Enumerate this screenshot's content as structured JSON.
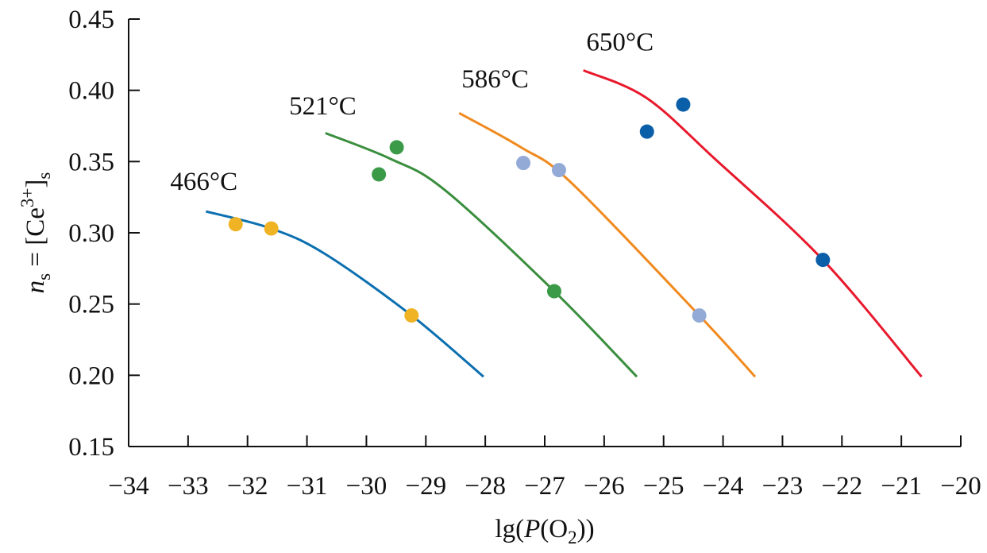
{
  "chart_data": {
    "type": "scatter",
    "title": "",
    "xlabel": "lg(P(O2))",
    "xlabel_parts": {
      "pre": "lg(",
      "italic": "P",
      "mid": "(O",
      "sub": "2",
      "post": "))"
    },
    "ylabel": "n_s = [Ce3+]_s",
    "ylabel_parts": {
      "italic": "n",
      "sub1": "s",
      "mid": " = [Ce",
      "sup": "3+",
      "close": "]",
      "sub2": "s"
    },
    "xlim": [
      -34,
      -20
    ],
    "ylim": [
      0.15,
      0.45
    ],
    "xticks": [
      -34,
      -33,
      -32,
      -31,
      -30,
      -29,
      -28,
      -27,
      -26,
      -25,
      -24,
      -23,
      -22,
      -21,
      -20
    ],
    "xtick_labels": [
      "−34",
      "−33",
      "−32",
      "−31",
      "−30",
      "−29",
      "−28",
      "−27",
      "−26",
      "−25",
      "−24",
      "−23",
      "−22",
      "−21",
      "−20"
    ],
    "yticks": [
      0.15,
      0.2,
      0.25,
      0.3,
      0.35,
      0.4,
      0.45
    ],
    "ytick_labels": [
      "0.15",
      "0.20",
      "0.25",
      "0.30",
      "0.35",
      "0.40",
      "0.45"
    ],
    "grid": false,
    "series": [
      {
        "name": "466°C",
        "line_color": "#0b6fb0",
        "marker_color": "#f0b323",
        "points": [
          [
            -32.2,
            0.306
          ],
          [
            -31.6,
            0.303
          ],
          [
            -29.24,
            0.242
          ]
        ],
        "curve": [
          [
            -32.7,
            0.315
          ],
          [
            -31.6,
            0.303
          ],
          [
            -30.69,
            0.285
          ],
          [
            -29.24,
            0.242
          ],
          [
            -28.03,
            0.199
          ]
        ],
        "label_pos": [
          -33.3,
          0.33
        ]
      },
      {
        "name": "521°C",
        "line_color": "#3a8e3e",
        "marker_color": "#3a9a48",
        "points": [
          [
            -29.79,
            0.341
          ],
          [
            -29.49,
            0.36
          ],
          [
            -26.84,
            0.259
          ]
        ],
        "curve": [
          [
            -30.69,
            0.37
          ],
          [
            -29.6,
            0.352
          ],
          [
            -28.68,
            0.33
          ],
          [
            -26.84,
            0.259
          ],
          [
            -25.45,
            0.199
          ]
        ],
        "label_pos": [
          -31.3,
          0.383
        ]
      },
      {
        "name": "586°C",
        "line_color": "#f08a1e",
        "marker_color": "#93a9d6",
        "points": [
          [
            -27.36,
            0.349
          ],
          [
            -26.76,
            0.344
          ],
          [
            -24.4,
            0.242
          ]
        ],
        "curve": [
          [
            -28.44,
            0.384
          ],
          [
            -27.4,
            0.36
          ],
          [
            -26.55,
            0.335
          ],
          [
            -24.4,
            0.242
          ],
          [
            -23.46,
            0.199
          ]
        ],
        "label_pos": [
          -28.4,
          0.402
        ]
      },
      {
        "name": "650°C",
        "line_color": "#e8192c",
        "marker_color": "#0a5fa8",
        "points": [
          [
            -25.28,
            0.371
          ],
          [
            -24.67,
            0.39
          ],
          [
            -22.32,
            0.281
          ]
        ],
        "curve": [
          [
            -26.35,
            0.414
          ],
          [
            -25.3,
            0.395
          ],
          [
            -24.14,
            0.352
          ],
          [
            -22.32,
            0.281
          ],
          [
            -20.66,
            0.199
          ]
        ],
        "label_pos": [
          -26.3,
          0.428
        ]
      }
    ]
  }
}
